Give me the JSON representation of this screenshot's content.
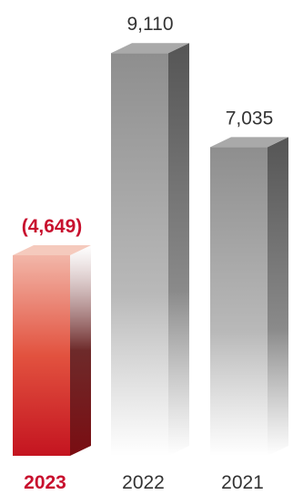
{
  "chart_data": {
    "type": "bar",
    "categories": [
      "2023",
      "2022",
      "2021"
    ],
    "values": [
      -4649,
      9110,
      7035
    ],
    "value_labels": [
      "(4,649)",
      "9,110",
      "7,035"
    ],
    "highlight_category": "2023",
    "colors": {
      "highlight": "#c8102e",
      "default": "#8a8a8a",
      "label_default": "#333333"
    },
    "grid": false,
    "legend": "none"
  }
}
